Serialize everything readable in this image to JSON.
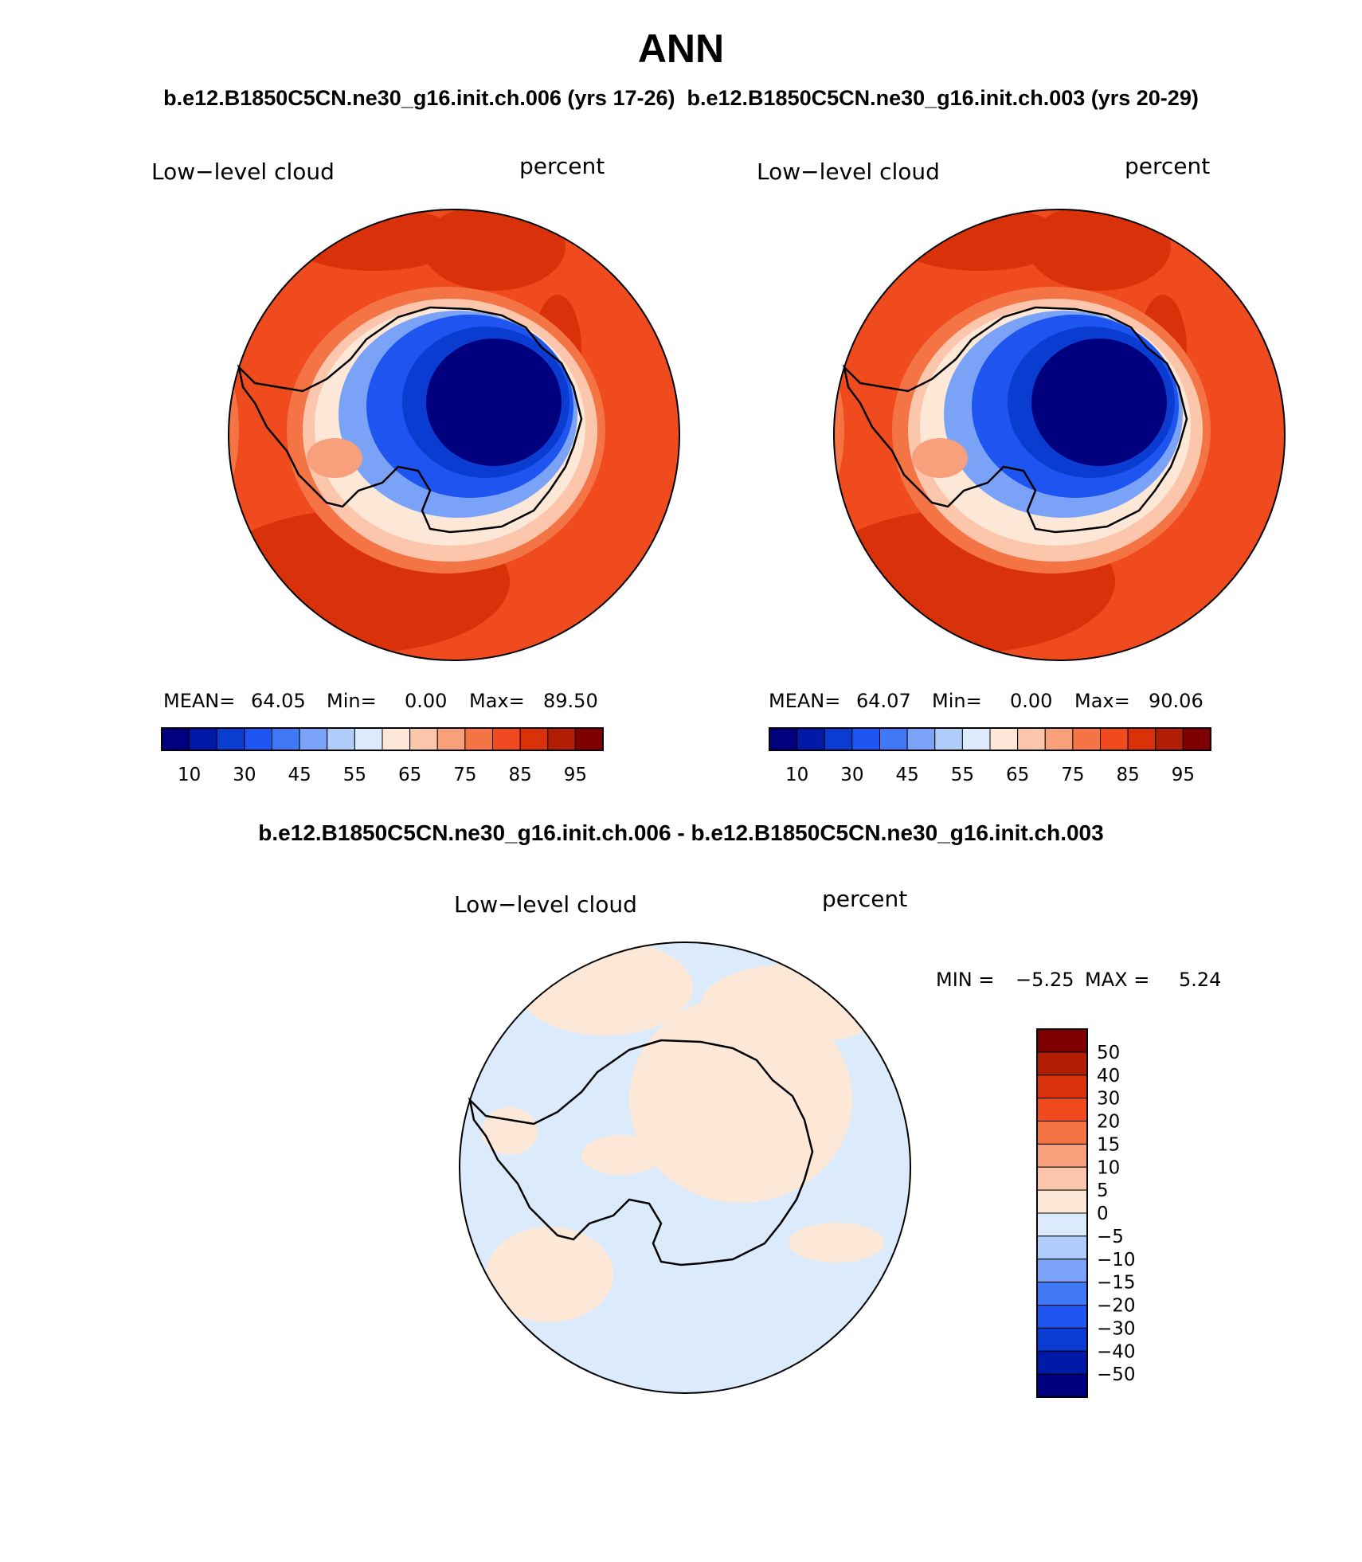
{
  "page": {
    "title": "ANN",
    "subtitle_top": "b.e12.B1850C5CN.ne30_g16.init.ch.006 (yrs 17-26)  b.e12.B1850C5CN.ne30_g16.init.ch.003 (yrs 20-29)",
    "subtitle_diff": "b.e12.B1850C5CN.ne30_g16.init.ch.006 - b.e12.B1850C5CN.ne30_g16.init.ch.003"
  },
  "panels": [
    {
      "variable": "Low−level cloud",
      "units": "percent",
      "stats": {
        "mean_label": "MEAN=",
        "mean": "64.05",
        "min_label": "Min=",
        "min": "0.00",
        "max_label": "Max=",
        "max": "89.50"
      }
    },
    {
      "variable": "Low−level cloud",
      "units": "percent",
      "stats": {
        "mean_label": "MEAN=",
        "mean": "64.07",
        "min_label": "Min=",
        "min": "0.00",
        "max_label": "Max=",
        "max": "90.06"
      }
    }
  ],
  "diff_panel": {
    "variable": "Low−level cloud",
    "units": "percent",
    "stats": {
      "min_label": "MIN =",
      "min": "−5.25",
      "max_label": "MAX =",
      "max": "5.24"
    }
  },
  "colorbar_main": {
    "colors": [
      "#00007f",
      "#0019a6",
      "#0a3cd2",
      "#1e55f0",
      "#4178f5",
      "#7aa2f7",
      "#b0ccfa",
      "#dcebfc",
      "#fde8d7",
      "#fbc6ac",
      "#f8a07c",
      "#f57446",
      "#f04b1e",
      "#d9320a",
      "#b01e06",
      "#7f0000"
    ],
    "tick_labels": [
      "10",
      "30",
      "45",
      "55",
      "65",
      "75",
      "85",
      "95"
    ]
  },
  "colorbar_diff": {
    "colors": [
      "#00007f",
      "#0019a6",
      "#0a3cd2",
      "#1e55f0",
      "#4178f5",
      "#7aa2f7",
      "#b0ccfa",
      "#dcebfc",
      "#fde8d7",
      "#fbc6ac",
      "#f8a07c",
      "#f57446",
      "#f04b1e",
      "#d9320a",
      "#b01e06",
      "#7f0000"
    ],
    "tick_labels": [
      "50",
      "40",
      "30",
      "20",
      "15",
      "10",
      "5",
      "0",
      "−5",
      "−10",
      "−15",
      "−20",
      "−30",
      "−40",
      "−50"
    ]
  }
}
